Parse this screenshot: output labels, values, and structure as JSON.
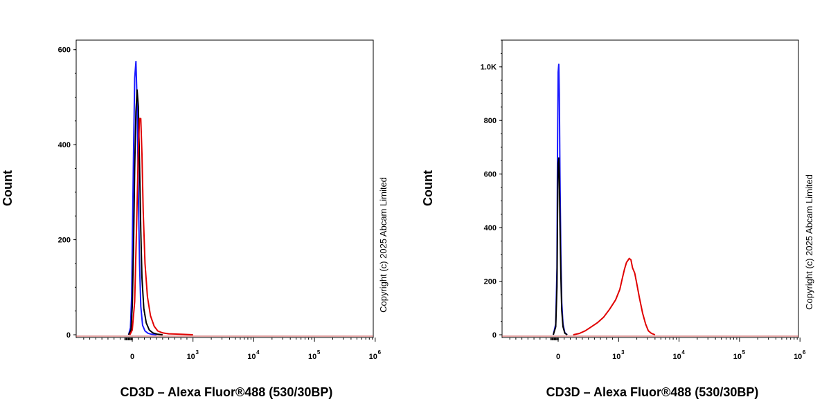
{
  "chart_data": [
    {
      "type": "line",
      "xlabel": "CD3D – Alexa Fluor®488 (530/30BP)",
      "ylabel": "Count",
      "x_scale": "biexponential",
      "xlim": [
        -500,
        1000000
      ],
      "ylim": [
        0,
        620
      ],
      "y_ticks": [
        {
          "value": 0,
          "label": "0"
        },
        {
          "value": 200,
          "label": "200"
        },
        {
          "value": 400,
          "label": "400"
        },
        {
          "value": 600,
          "label": "600"
        }
      ],
      "x_ticks": [
        {
          "value": 0,
          "base": "0",
          "exp": ""
        },
        {
          "value": 1000,
          "base": "10",
          "exp": "3"
        },
        {
          "value": 10000,
          "base": "10",
          "exp": "4"
        },
        {
          "value": 100000,
          "base": "10",
          "exp": "5"
        },
        {
          "value": 1000000,
          "base": "10",
          "exp": "6"
        }
      ],
      "annotation": "Copyright (c) 2025 Abcam Limited",
      "series": [
        {
          "color": "#1a1aff",
          "x": [
            -60,
            -30,
            -10,
            0,
            20,
            40,
            60,
            80,
            100,
            120,
            140,
            170,
            210,
            260,
            320,
            400
          ],
          "y": [
            0,
            15,
            80,
            180,
            380,
            540,
            575,
            490,
            300,
            150,
            60,
            20,
            8,
            3,
            1,
            0
          ]
        },
        {
          "color": "#000000",
          "x": [
            -60,
            -20,
            0,
            20,
            40,
            60,
            80,
            100,
            120,
            140,
            160,
            190,
            230,
            280,
            340,
            420,
            500
          ],
          "y": [
            0,
            10,
            60,
            180,
            350,
            470,
            515,
            480,
            360,
            220,
            120,
            55,
            25,
            10,
            4,
            1,
            0
          ]
        },
        {
          "color": "#e00000",
          "x": [
            -40,
            0,
            40,
            70,
            100,
            120,
            140,
            160,
            180,
            210,
            250,
            300,
            360,
            420,
            500,
            600,
            800,
            1000
          ],
          "y": [
            0,
            10,
            70,
            220,
            390,
            455,
            455,
            380,
            260,
            150,
            80,
            40,
            18,
            8,
            4,
            2,
            1,
            0
          ]
        }
      ]
    },
    {
      "type": "line",
      "xlabel": "CD3D – Alexa Fluor®488 (530/30BP)",
      "ylabel": "Count",
      "x_scale": "biexponential",
      "xlim": [
        -500,
        1000000
      ],
      "ylim": [
        0,
        1100
      ],
      "y_ticks": [
        {
          "value": 0,
          "label": "0"
        },
        {
          "value": 200,
          "label": "200"
        },
        {
          "value": 400,
          "label": "400"
        },
        {
          "value": 600,
          "label": "600"
        },
        {
          "value": 800,
          "label": "800"
        },
        {
          "value": 1000,
          "label": "1.0K"
        }
      ],
      "x_ticks": [
        {
          "value": 0,
          "base": "0",
          "exp": ""
        },
        {
          "value": 1000,
          "base": "10",
          "exp": "3"
        },
        {
          "value": 10000,
          "base": "10",
          "exp": "4"
        },
        {
          "value": 100000,
          "base": "10",
          "exp": "5"
        },
        {
          "value": 1000000,
          "base": "10",
          "exp": "6"
        }
      ],
      "annotation": "Copyright (c) 2025 Abcam Limited",
      "series": [
        {
          "color": "#1a1aff",
          "x": [
            -80,
            -40,
            -20,
            -10,
            0,
            10,
            20,
            30,
            45,
            60,
            80,
            110,
            150
          ],
          "y": [
            0,
            40,
            250,
            700,
            980,
            1010,
            900,
            600,
            300,
            120,
            40,
            8,
            0
          ]
        },
        {
          "color": "#000000",
          "x": [
            -80,
            -40,
            -20,
            -10,
            0,
            10,
            20,
            30,
            45,
            60,
            80,
            110,
            150
          ],
          "y": [
            0,
            30,
            180,
            450,
            640,
            660,
            600,
            420,
            220,
            90,
            30,
            6,
            0
          ]
        },
        {
          "color": "#e00000",
          "x": [
            250,
            350,
            450,
            550,
            650,
            750,
            850,
            950,
            1050,
            1150,
            1250,
            1350,
            1500,
            1600,
            1700,
            1850,
            2000,
            2200,
            2500,
            2800,
            3100,
            3500,
            4000
          ],
          "y": [
            0,
            5,
            15,
            30,
            45,
            65,
            95,
            130,
            170,
            210,
            245,
            270,
            285,
            280,
            250,
            230,
            190,
            140,
            80,
            40,
            15,
            5,
            0
          ]
        }
      ]
    }
  ]
}
